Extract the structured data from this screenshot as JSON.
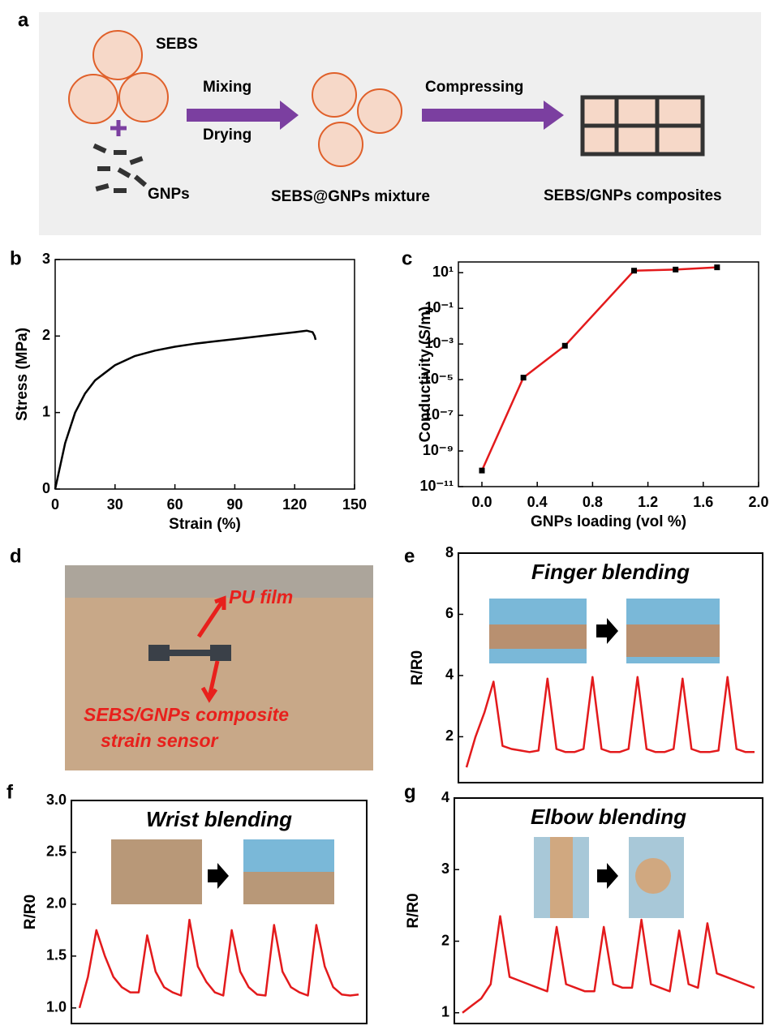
{
  "panel_labels": [
    "a",
    "b",
    "c",
    "d",
    "e",
    "f",
    "g"
  ],
  "schematic": {
    "labels": [
      "SEBS",
      "GNPs",
      "Mixing",
      "Drying",
      "SEBS@GNPs mixture",
      "Compressing",
      "SEBS/GNPs composites"
    ]
  },
  "photo": {
    "labels": [
      "PU film",
      "SEBS/GNPs composite",
      "strain sensor"
    ]
  },
  "chart_data": [
    {
      "type": "line",
      "x_label": "Strain (%)",
      "y_label": "Stress (MPa)",
      "color": "#000000",
      "x": [
        0,
        5,
        10,
        15,
        20,
        30,
        40,
        50,
        60,
        70,
        80,
        90,
        100,
        110,
        120,
        126,
        129,
        130,
        130.5
      ],
      "values": [
        0,
        0.6,
        1.0,
        1.25,
        1.42,
        1.62,
        1.74,
        1.81,
        1.86,
        1.9,
        1.93,
        1.96,
        1.99,
        2.02,
        2.05,
        2.07,
        2.05,
        2.0,
        1.95
      ],
      "xlim": [
        0,
        150
      ],
      "xticks": [
        0,
        30,
        60,
        90,
        120,
        150
      ],
      "ylim": [
        0,
        3
      ],
      "yticks": [
        0,
        1,
        2,
        3
      ]
    },
    {
      "type": "line",
      "x_label": "GNPs loading (vol %)",
      "y_label": "Conductivity (S/m)",
      "color": "#e31a1c",
      "marker_color": "#000000",
      "markers": true,
      "yscale": "log",
      "x": [
        0,
        0.3,
        0.6,
        1.1,
        1.4,
        1.7
      ],
      "values": [
        8e-11,
        1.3e-05,
        0.0008,
        13,
        15,
        20
      ],
      "xlim": [
        -0.17,
        2.0
      ],
      "xticks": [
        {
          "value": 0,
          "label": "0.0"
        },
        0.4,
        0.8,
        1.2,
        1.6,
        {
          "value": 2,
          "label": "2.0"
        }
      ],
      "ylim": [
        1e-11,
        40
      ],
      "yticks": [
        {
          "value": 1e-11,
          "label": "10⁻¹¹"
        },
        {
          "value": 1e-09,
          "label": "10⁻⁹"
        },
        {
          "value": 1e-07,
          "label": "10⁻⁷"
        },
        {
          "value": 1e-05,
          "label": "10⁻⁵"
        },
        {
          "value": 0.001,
          "label": "10⁻³"
        },
        {
          "value": 0.1,
          "label": "10⁻¹"
        },
        {
          "value": 10,
          "label": "10¹"
        }
      ]
    },
    {
      "type": "line",
      "title": "Finger blending",
      "y_label": "R/R0",
      "color": "#e31a1c",
      "values": [
        1.0,
        2.0,
        2.8,
        3.8,
        1.7,
        1.6,
        1.55,
        1.5,
        1.55,
        3.9,
        1.6,
        1.5,
        1.5,
        1.6,
        3.95,
        1.6,
        1.5,
        1.5,
        1.6,
        3.95,
        1.6,
        1.5,
        1.5,
        1.6,
        3.9,
        1.6,
        1.5,
        1.5,
        1.55,
        3.95,
        1.6,
        1.5,
        1.5
      ],
      "ylim": [
        0.5,
        8
      ],
      "yticks": [
        2,
        4,
        6,
        8
      ]
    },
    {
      "type": "line",
      "title": "Wrist blending",
      "y_label": "R/R0",
      "color": "#e31a1c",
      "values": [
        1.0,
        1.3,
        1.75,
        1.5,
        1.3,
        1.2,
        1.15,
        1.15,
        1.7,
        1.35,
        1.2,
        1.15,
        1.12,
        1.85,
        1.4,
        1.25,
        1.15,
        1.12,
        1.75,
        1.35,
        1.2,
        1.13,
        1.12,
        1.8,
        1.35,
        1.2,
        1.15,
        1.12,
        1.8,
        1.4,
        1.2,
        1.13,
        1.12,
        1.13
      ],
      "ylim": [
        0.85,
        3.0
      ],
      "yticks": [
        {
          "value": 1,
          "label": "1.0"
        },
        1.5,
        {
          "value": 2,
          "label": "2.0"
        },
        2.5,
        {
          "value": 3,
          "label": "3.0"
        }
      ]
    },
    {
      "type": "line",
      "title": "Elbow blending",
      "y_label": "R/R0",
      "color": "#e31a1c",
      "values": [
        1.0,
        1.1,
        1.2,
        1.4,
        2.35,
        1.5,
        1.45,
        1.4,
        1.35,
        1.3,
        2.2,
        1.4,
        1.35,
        1.3,
        1.3,
        2.2,
        1.4,
        1.35,
        1.35,
        2.3,
        1.4,
        1.35,
        1.3,
        2.15,
        1.4,
        1.35,
        2.25,
        1.55,
        1.5,
        1.45,
        1.4,
        1.35
      ],
      "ylim": [
        0.85,
        4
      ],
      "yticks": [
        1,
        2,
        3,
        4
      ]
    }
  ]
}
